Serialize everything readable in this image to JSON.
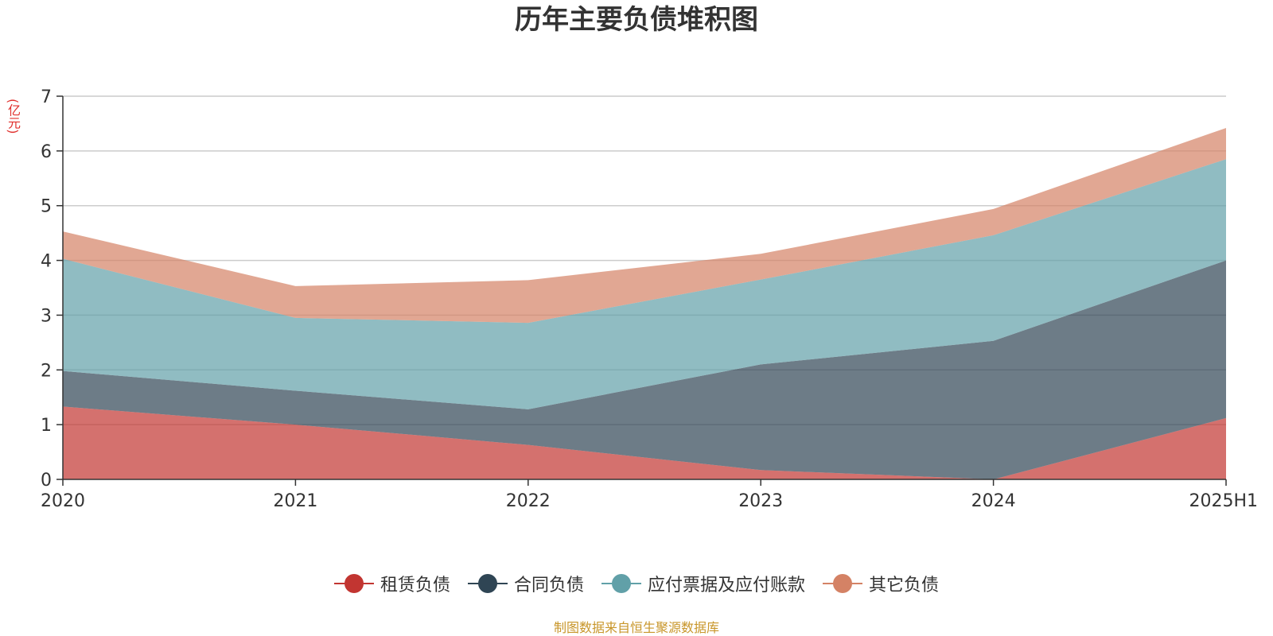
{
  "chart_data": {
    "type": "area",
    "stacked": true,
    "title": "历年主要负债堆积图",
    "unit": "(亿元)",
    "categories": [
      "2020",
      "2021",
      "2022",
      "2023",
      "2024",
      "2025H1"
    ],
    "ylim": [
      0,
      7
    ],
    "yticks": [
      "0",
      "1",
      "2",
      "3",
      "4",
      "5",
      "6",
      "7"
    ],
    "grid": true,
    "legend_position": "bottom",
    "series": [
      {
        "name": "租赁负债",
        "color": "#c23531",
        "values": [
          1.33,
          1.0,
          0.63,
          0.17,
          0.0,
          1.12
        ]
      },
      {
        "name": "合同负债",
        "color": "#2f4554",
        "values": [
          0.65,
          0.62,
          0.65,
          1.93,
          2.53,
          2.88
        ]
      },
      {
        "name": "应付票据及应付账款",
        "color": "#61a0a8",
        "values": [
          2.05,
          1.33,
          1.58,
          1.55,
          1.93,
          1.85
        ]
      },
      {
        "name": "其它负债",
        "color": "#d48265",
        "values": [
          0.5,
          0.58,
          0.78,
          0.47,
          0.48,
          0.57
        ]
      }
    ]
  },
  "source": "制图数据来自恒生聚源数据库"
}
